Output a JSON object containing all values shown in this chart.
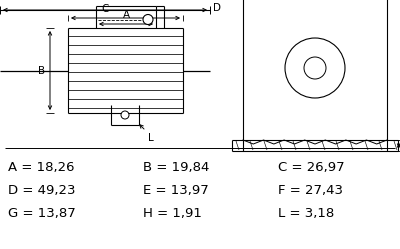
{
  "background_color": "#ffffff",
  "line_color": "#000000",
  "dim_rows": [
    [
      "A = 18,26",
      "B = 19,84",
      "C = 26,97"
    ],
    [
      "D = 49,23",
      "E = 13,97",
      "F = 27,43"
    ],
    [
      "G = 13,87",
      "H = 1,91",
      "L = 3,18"
    ]
  ],
  "font_size_dim": 9.5
}
